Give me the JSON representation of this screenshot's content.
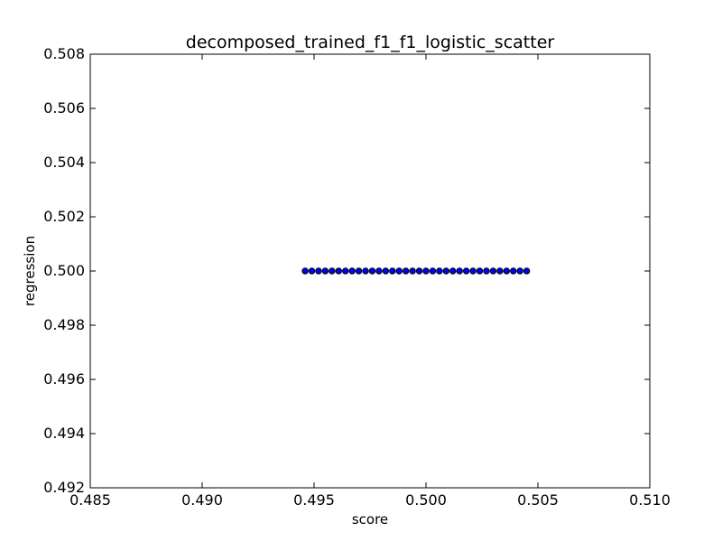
{
  "chart_data": {
    "type": "scatter",
    "title": "decomposed_trained_f1_f1_logistic_scatter",
    "xlabel": "score",
    "ylabel": "regression",
    "xlim": [
      0.485,
      0.51
    ],
    "ylim": [
      0.492,
      0.508
    ],
    "xticks": [
      "0.485",
      "0.490",
      "0.495",
      "0.500",
      "0.505",
      "0.510"
    ],
    "yticks": [
      "0.492",
      "0.494",
      "0.496",
      "0.498",
      "0.500",
      "0.502",
      "0.504",
      "0.506",
      "0.508"
    ],
    "grid": false,
    "colors": {
      "marker_fill": "#0000ff",
      "marker_edge": "#000000"
    },
    "series": [
      {
        "x": [
          0.4946,
          0.4949,
          0.4952,
          0.4955,
          0.4958,
          0.4961,
          0.4964,
          0.4967,
          0.497,
          0.4973,
          0.4976,
          0.4979,
          0.4982,
          0.4985,
          0.4988,
          0.4991,
          0.4994,
          0.4997,
          0.5,
          0.5003,
          0.5006,
          0.5009,
          0.5012,
          0.5015,
          0.5018,
          0.5021,
          0.5024,
          0.5027,
          0.503,
          0.5033,
          0.5036,
          0.5039,
          0.5042,
          0.5045
        ],
        "y": [
          0.5,
          0.5,
          0.5,
          0.5,
          0.5,
          0.5,
          0.5,
          0.5,
          0.5,
          0.5,
          0.5,
          0.5,
          0.5,
          0.5,
          0.5,
          0.5,
          0.5,
          0.5,
          0.5,
          0.5,
          0.5,
          0.5,
          0.5,
          0.5,
          0.5,
          0.5,
          0.5,
          0.5,
          0.5,
          0.5,
          0.5,
          0.5,
          0.5,
          0.5
        ]
      }
    ]
  }
}
